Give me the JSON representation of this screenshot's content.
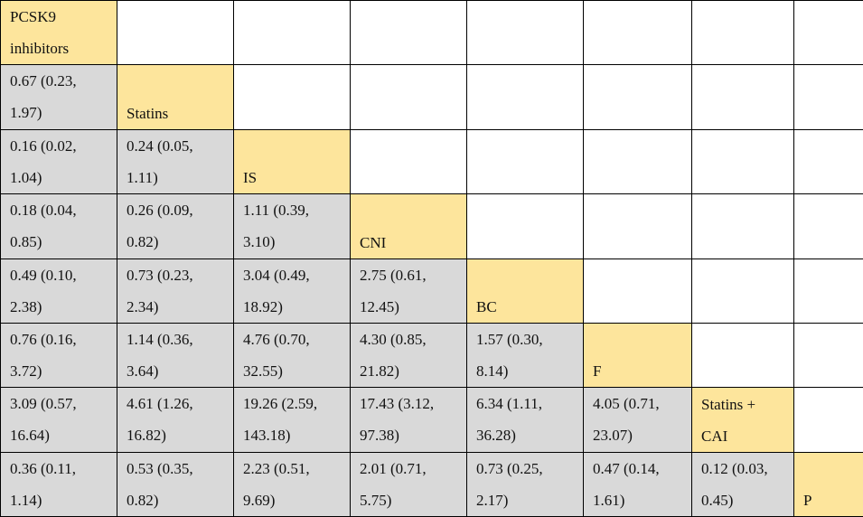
{
  "table": {
    "rows": [
      [
        "PCSK9 inhibitors"
      ],
      [
        "0.67 (0.23, 1.97)",
        "Statins"
      ],
      [
        "0.16 (0.02, 1.04)",
        "0.24 (0.05, 1.11)",
        "IS"
      ],
      [
        "0.18 (0.04, 0.85)",
        "0.26 (0.09, 0.82)",
        "1.11 (0.39, 3.10)",
        "CNI"
      ],
      [
        "0.49 (0.10, 2.38)",
        "0.73 (0.23, 2.34)",
        "3.04 (0.49, 18.92)",
        "2.75 (0.61, 12.45)",
        "BC"
      ],
      [
        "0.76 (0.16, 3.72)",
        "1.14 (0.36, 3.64)",
        "4.76 (0.70, 32.55)",
        "4.30 (0.85, 21.82)",
        "1.57 (0.30, 8.14)",
        "F"
      ],
      [
        "3.09 (0.57, 16.64)",
        "4.61 (1.26, 16.82)",
        "19.26 (2.59, 143.18)",
        "17.43 (3.12, 97.38)",
        "6.34 (1.11, 36.28)",
        "4.05 (0.71, 23.07)",
        "Statins + CAI"
      ],
      [
        "0.36 (0.11, 1.14)",
        "0.53 (0.35, 0.82)",
        "2.23 (0.51, 9.69)",
        "2.01 (0.71, 5.75)",
        "0.73 (0.25, 2.17)",
        "0.47 (0.14, 1.61)",
        "0.12 (0.03, 0.45)",
        "P"
      ]
    ]
  }
}
